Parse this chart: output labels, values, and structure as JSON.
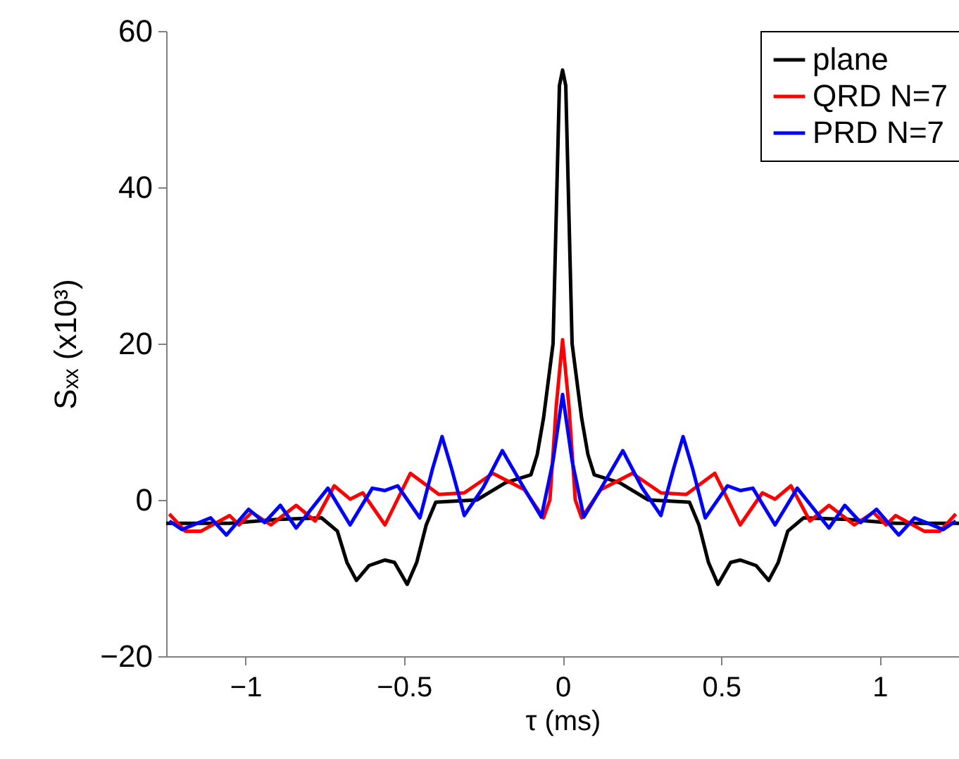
{
  "chart_data": {
    "type": "line",
    "xlabel": "τ (ms)",
    "ylabel": "Sₓₓ (x10³)",
    "xlim": [
      -1.25,
      1.25
    ],
    "xticks": [
      -1,
      -0.5,
      0,
      0.5,
      1
    ],
    "ylim": [
      -20,
      60
    ],
    "yticks": [
      -20,
      0,
      20,
      40,
      60
    ],
    "grid": false,
    "legend": "top right",
    "line_style": "solid",
    "marker": "none",
    "series": [
      {
        "name": "plane",
        "color": "#000000",
        "x": [
          -1.25,
          -1.05,
          -0.9,
          -0.76,
          -0.71,
          -0.68,
          -0.65,
          -0.61,
          -0.56,
          -0.53,
          -0.49,
          -0.46,
          -0.43,
          -0.4,
          -0.27,
          -0.18,
          -0.1,
          -0.08,
          -0.06,
          -0.03,
          -0.01,
          0,
          0.01,
          0.03,
          0.06,
          0.08,
          0.1,
          0.18,
          0.27,
          0.4,
          0.43,
          0.46,
          0.49,
          0.53,
          0.56,
          0.61,
          0.65,
          0.68,
          0.71,
          0.76,
          0.9,
          1.05,
          1.25
        ],
        "values": [
          -3,
          -3,
          -2.5,
          -2.3,
          -4,
          -8,
          -10.3,
          -8.4,
          -7.7,
          -8,
          -10.8,
          -8,
          -3.2,
          -0.3,
          0,
          2.2,
          3.2,
          5.8,
          10.5,
          20,
          53,
          55,
          53,
          20,
          10.5,
          5.8,
          3.2,
          2.2,
          0,
          -0.3,
          -3.2,
          -8,
          -10.8,
          -8,
          -7.7,
          -8.4,
          -10.3,
          -8,
          -4,
          -2.3,
          -2.5,
          -3,
          -3
        ]
      },
      {
        "name": "QRD N=7",
        "color": "#ff0000",
        "x": [
          -1.24,
          -1.19,
          -1.14,
          -1.05,
          -1.02,
          -0.98,
          -0.92,
          -0.84,
          -0.78,
          -0.72,
          -0.67,
          -0.63,
          -0.56,
          -0.48,
          -0.39,
          -0.31,
          -0.22,
          -0.12,
          -0.06,
          -0.04,
          -0.02,
          0,
          0.02,
          0.04,
          0.06,
          0.12,
          0.22,
          0.31,
          0.39,
          0.48,
          0.56,
          0.63,
          0.67,
          0.72,
          0.78,
          0.84,
          0.92,
          0.98,
          1.02,
          1.05,
          1.14,
          1.19,
          1.24
        ],
        "values": [
          -1.8,
          -4,
          -4,
          -2,
          -3.2,
          -1.6,
          -3.2,
          -0.7,
          -2.7,
          1.8,
          0.1,
          0.9,
          -3.2,
          3.4,
          0.7,
          0.9,
          3.4,
          1.3,
          -2.3,
          0,
          12,
          20.5,
          12,
          0,
          -2.3,
          1.3,
          3.4,
          0.9,
          0.7,
          3.4,
          -3.2,
          0.9,
          0.1,
          1.8,
          -2.7,
          -0.7,
          -3.2,
          -1.6,
          -3.2,
          -2,
          -4,
          -4,
          -1.8
        ]
      },
      {
        "name": "PRD N=7",
        "color": "#0000ff",
        "x": [
          -1.24,
          -1.2,
          -1.11,
          -1.06,
          -0.99,
          -0.94,
          -0.89,
          -0.84,
          -0.74,
          -0.67,
          -0.6,
          -0.56,
          -0.52,
          -0.45,
          -0.41,
          -0.38,
          -0.35,
          -0.31,
          -0.25,
          -0.19,
          -0.12,
          -0.067,
          -0.03,
          0,
          0.03,
          0.067,
          0.12,
          0.19,
          0.25,
          0.31,
          0.35,
          0.38,
          0.41,
          0.45,
          0.52,
          0.56,
          0.6,
          0.67,
          0.74,
          0.84,
          0.89,
          0.94,
          0.99,
          1.06,
          1.11,
          1.2,
          1.24
        ],
        "values": [
          -2.7,
          -3.8,
          -2.3,
          -4.5,
          -1.2,
          -2.9,
          -0.7,
          -3.6,
          1.5,
          -3.2,
          1.5,
          1.2,
          1.8,
          -2.3,
          4,
          8.1,
          4,
          -2,
          1.6,
          6.3,
          1.4,
          -2.2,
          5,
          13.5,
          5,
          -2.2,
          1.4,
          6.3,
          1.6,
          -2,
          4,
          8.1,
          4,
          -2.3,
          1.8,
          1.2,
          1.5,
          -3.2,
          1.5,
          -3.6,
          -0.7,
          -2.9,
          -1.2,
          -4.5,
          -2.3,
          -3.8,
          -2.7
        ]
      }
    ]
  }
}
